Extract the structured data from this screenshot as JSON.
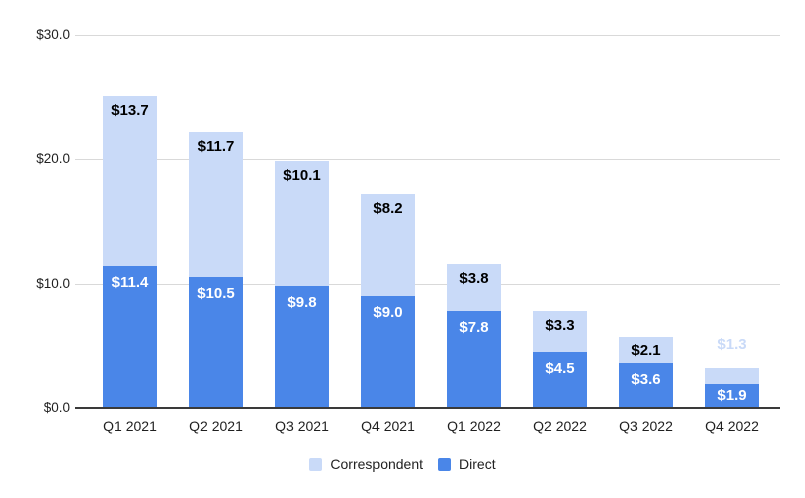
{
  "chart_data": {
    "type": "bar",
    "stacked": true,
    "orientation": "vertical",
    "title": "",
    "xlabel": "",
    "ylabel": "",
    "categories": [
      "Q1 2021",
      "Q2 2021",
      "Q3 2021",
      "Q4 2021",
      "Q1 2022",
      "Q2 2022",
      "Q3 2022",
      "Q4 2022"
    ],
    "series": [
      {
        "name": "Correspondent",
        "color": "#c9daf8",
        "label_color": "#000000",
        "values": [
          13.7,
          11.7,
          10.1,
          8.2,
          3.8,
          3.3,
          2.1,
          1.3
        ]
      },
      {
        "name": "Direct",
        "color": "#4a86e8",
        "label_color": "#ffffff",
        "values": [
          11.4,
          10.5,
          9.8,
          9.0,
          7.8,
          4.5,
          3.6,
          1.9
        ]
      }
    ],
    "stack_order_bottom_to_top": [
      "Direct",
      "Correspondent"
    ],
    "value_prefix": "$",
    "value_decimals": 1,
    "ylim": [
      0,
      30
    ],
    "y_ticks": [
      {
        "value": 0,
        "label": "$0.0"
      },
      {
        "value": 10,
        "label": "$10.0"
      },
      {
        "value": 20,
        "label": "$20.0"
      },
      {
        "value": 30,
        "label": "$30.0"
      }
    ],
    "grid": true,
    "legend_position": "bottom",
    "background": "#ffffff",
    "gridline_color": "#d9d9d9",
    "axis_line_color": "#3a3a3a",
    "axis_text_color": "#222222"
  }
}
